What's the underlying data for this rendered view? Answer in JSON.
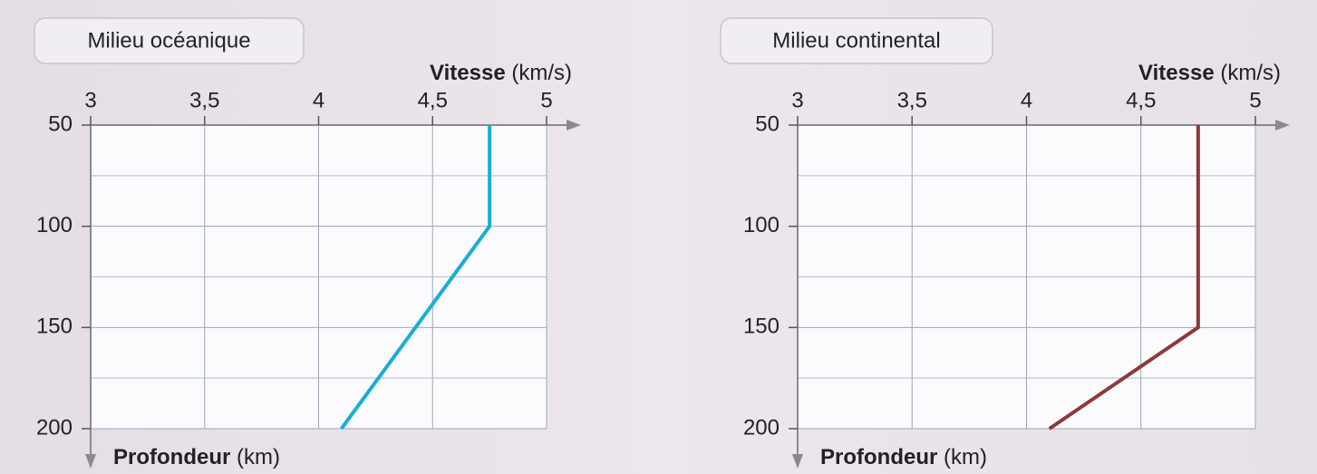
{
  "chart_data": [
    {
      "type": "line",
      "title": "Milieu océanique",
      "xlabel": {
        "name": "Vitesse",
        "unit": "(km/s)"
      },
      "ylabel": {
        "name": "Profondeur",
        "unit": "(km)"
      },
      "xlim": [
        3,
        5
      ],
      "xticks": [
        3,
        {
          "value": 3.5,
          "label": "3,5"
        },
        4,
        {
          "value": 4.5,
          "label": "4,5"
        },
        5
      ],
      "ylim": [
        50,
        200
      ],
      "y_inverted": true,
      "yticks": [
        50,
        100,
        150,
        200
      ],
      "minor_yticks": [
        75,
        125,
        175
      ],
      "grid": true,
      "series": [
        {
          "color": "#1aaed4",
          "x": [
            4.75,
            4.75,
            4.1
          ],
          "values": [
            50,
            100,
            200
          ]
        }
      ]
    },
    {
      "type": "line",
      "title": "Milieu continental",
      "xlabel": {
        "name": "Vitesse",
        "unit": "(km/s)"
      },
      "ylabel": {
        "name": "Profondeur",
        "unit": "(km)"
      },
      "xlim": [
        3,
        5
      ],
      "xticks": [
        3,
        {
          "value": 3.5,
          "label": "3,5"
        },
        4,
        {
          "value": 4.5,
          "label": "4,5"
        },
        5
      ],
      "ylim": [
        50,
        200
      ],
      "y_inverted": true,
      "yticks": [
        50,
        100,
        150,
        200
      ],
      "minor_yticks": [
        75,
        125,
        175
      ],
      "grid": true,
      "series": [
        {
          "color": "#8b3a3a",
          "x": [
            4.75,
            4.75,
            4.1
          ],
          "values": [
            50,
            150,
            200
          ]
        }
      ]
    }
  ]
}
